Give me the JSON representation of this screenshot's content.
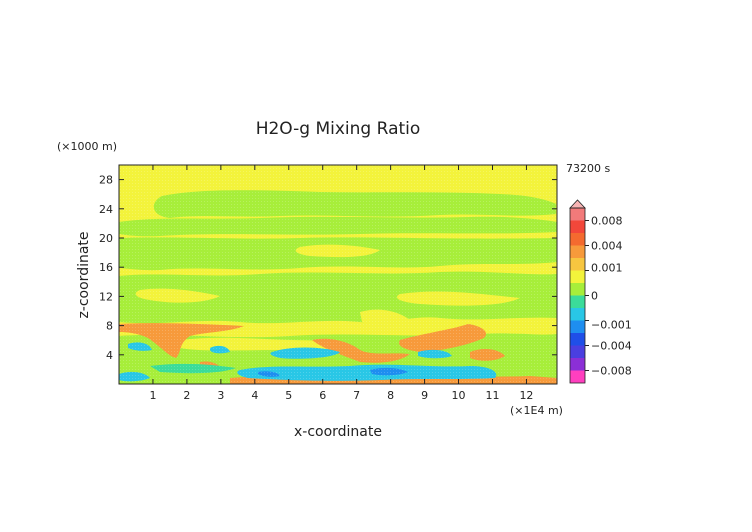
{
  "chart_data": {
    "type": "heatmap",
    "title": "H2O-g Mixing Ratio",
    "xlabel": "x-coordinate",
    "ylabel": "z-coordinate",
    "x_unit": "(×1E4 m)",
    "y_unit": "(×1000 m)",
    "time_label": "73200 s",
    "xlim": [
      0,
      12.9
    ],
    "ylim": [
      0,
      30
    ],
    "x_ticks": [
      1,
      2,
      3,
      4,
      5,
      6,
      7,
      8,
      9,
      10,
      11,
      12
    ],
    "y_ticks": [
      4,
      8,
      12,
      16,
      20,
      24,
      28
    ],
    "colorbar": {
      "extend": "both",
      "levels": [
        -0.01,
        -0.008,
        -0.006,
        -0.004,
        -0.002,
        -0.001,
        -0.0005,
        0,
        0.0005,
        0.001,
        0.002,
        0.004,
        0.006,
        0.008,
        0.01
      ],
      "colors": [
        "#ff3fbf",
        "#8b2fd6",
        "#4a3fe0",
        "#1f4fe8",
        "#1e8ef0",
        "#29c7e6",
        "#3bdc9a",
        "#a7ee3a",
        "#f3f33b",
        "#f7c640",
        "#f79a3b",
        "#f46a2f",
        "#f2473a",
        "#f27a7a",
        "#f7b4b4"
      ],
      "labels": [
        {
          "value": 0.008,
          "text": "0.008"
        },
        {
          "value": 0.004,
          "text": "0.004"
        },
        {
          "value": 0.001,
          "text": "0.001"
        },
        {
          "value": 0,
          "text": "0"
        },
        {
          "value": -0.001,
          "text": "−0.001"
        },
        {
          "value": -0.004,
          "text": "−0.004"
        },
        {
          "value": -0.008,
          "text": "−0.008"
        }
      ]
    },
    "regions": [
      {
        "level": "green",
        "x": [
          0.1,
          4.0,
          8.5,
          11.8,
          12.8
        ],
        "z": [
          7.5,
          9.0,
          11.0,
          9.0,
          8.0
        ]
      },
      {
        "level": "green",
        "x": [
          1.0,
          3.0,
          6.5,
          10.5,
          12.5
        ],
        "z": [
          15.0,
          17.5,
          18.5,
          16.5,
          14.5
        ]
      },
      {
        "level": "green",
        "x": [
          2.0,
          5.0,
          9.0,
          12.0
        ],
        "z": [
          21.5,
          24.0,
          24.5,
          21.0
        ]
      },
      {
        "level": "orange",
        "x": [
          0.1,
          1.5,
          3.5
        ],
        "z": [
          7.8,
          7.5,
          7.8
        ]
      },
      {
        "level": "orange",
        "x": [
          6.0,
          7.5,
          8.5
        ],
        "z": [
          5.5,
          4.0,
          3.5
        ]
      },
      {
        "level": "orange",
        "x": [
          8.5,
          9.5,
          10.5
        ],
        "z": [
          5.5,
          6.0,
          7.5
        ]
      },
      {
        "level": "cyan",
        "x": [
          4.6,
          5.6,
          6.8
        ],
        "z": [
          4.5,
          4.0,
          4.5
        ]
      },
      {
        "level": "cyan",
        "x": [
          3.5,
          5.0,
          7.0,
          9.0,
          10.8
        ],
        "z": [
          1.0,
          0.8,
          1.0,
          1.2,
          1.6
        ]
      },
      {
        "level": "blue",
        "x": [
          7.5,
          8.5
        ],
        "z": [
          1.6,
          1.2
        ]
      }
    ]
  }
}
